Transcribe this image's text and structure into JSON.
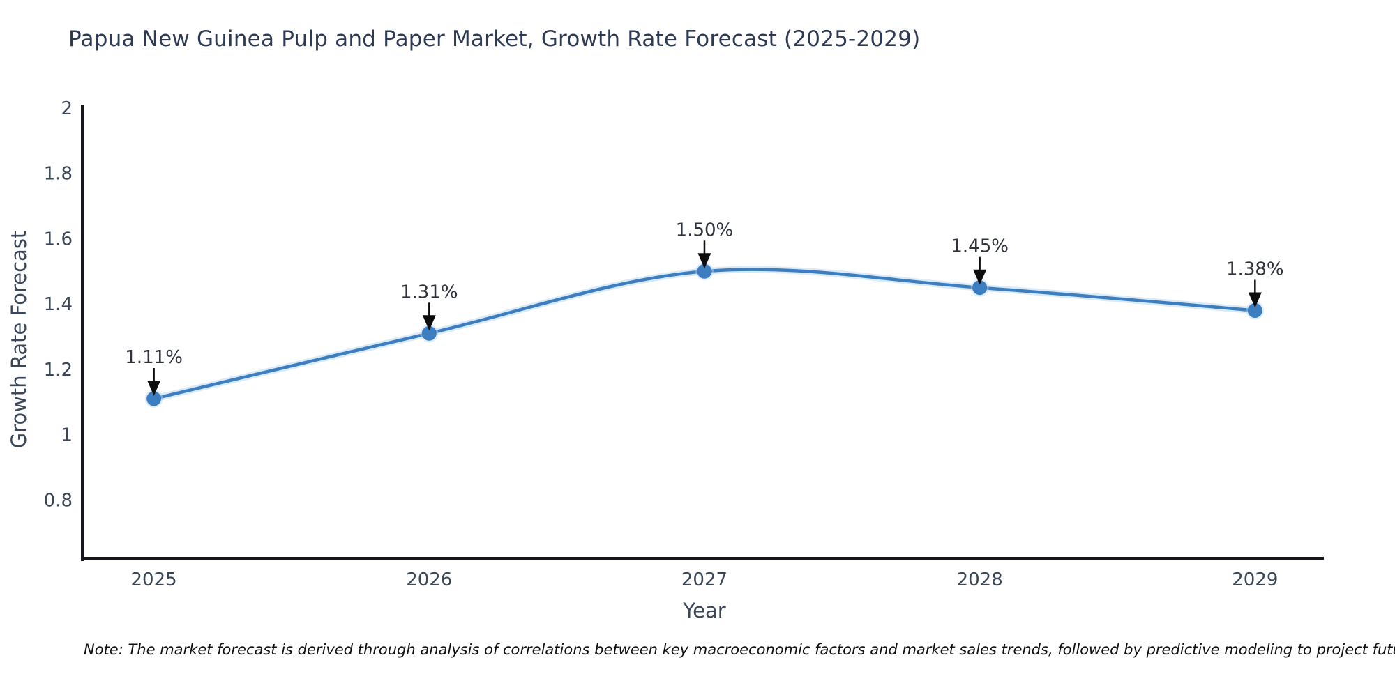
{
  "note": "Note: The market forecast is derived through analysis of correlations between key macroeconomic factors and market sales trends, followed by predictive modeling to project future sales",
  "chart_data": {
    "type": "line",
    "title": "Papua New Guinea Pulp and Paper Market, Growth Rate Forecast (2025-2029)",
    "xlabel": "Year",
    "ylabel": "Growth Rate Forecast",
    "x": [
      2025,
      2026,
      2027,
      2028,
      2029
    ],
    "xticklabels": [
      "2025",
      "2026",
      "2027",
      "2028",
      "2029"
    ],
    "series": [
      {
        "name": "Growth Rate Forecast",
        "values": [
          1.11,
          1.31,
          1.5,
          1.45,
          1.38
        ]
      }
    ],
    "point_labels": [
      "1.11%",
      "1.31%",
      "1.50%",
      "1.45%",
      "1.38%"
    ],
    "yticks": [
      2,
      1.8,
      1.6,
      1.4,
      1.2,
      1,
      0.8
    ],
    "ytick_labels": [
      "2",
      "1.8",
      "1.6",
      "1.4",
      "1.2",
      "1",
      "0.8"
    ],
    "ylim": [
      0.617,
      2.0
    ],
    "xlim": [
      2024.74,
      2029.25
    ],
    "grid": false,
    "legend": "none",
    "smooth": true,
    "line_color": "#3C7EBF",
    "marker_color": "#3C7EBF",
    "halo_color": "#BCD8F0",
    "axis_color": "#16161E",
    "tick_color": "#3A4759",
    "label_color": "#2E323B",
    "arrow_color": "#0D0D0D"
  }
}
